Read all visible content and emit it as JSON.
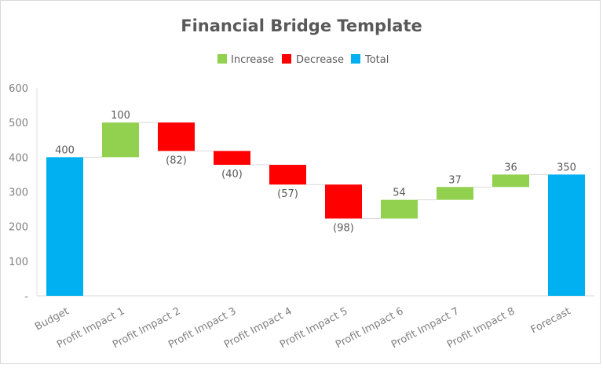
{
  "chart_data": {
    "type": "waterfall",
    "title": "Financial Bridge Template",
    "legend": {
      "position": "top",
      "entries": [
        {
          "name": "Increase",
          "color": "#92d050"
        },
        {
          "name": "Decrease",
          "color": "#ff0000"
        },
        {
          "name": "Total",
          "color": "#00b0f0"
        }
      ]
    },
    "categories": [
      "Budget",
      "Profit Impact 1",
      "Profit Impact 2",
      "Profit Impact 3",
      "Profit Impact 4",
      "Profit Impact 5",
      "Profit Impact 6",
      "Profit Impact 7",
      "Profit Impact 8",
      "Forecast"
    ],
    "values": [
      400,
      100,
      -82,
      -40,
      -57,
      -98,
      54,
      37,
      36,
      350
    ],
    "kinds": [
      "total",
      "delta",
      "delta",
      "delta",
      "delta",
      "delta",
      "delta",
      "delta",
      "delta",
      "total"
    ],
    "data_labels": [
      "400",
      "100",
      "(82)",
      "(40)",
      "(57)",
      "(98)",
      "54",
      "37",
      "36",
      "350"
    ],
    "ylim": [
      0,
      600
    ],
    "yticks": [
      0,
      100,
      200,
      300,
      400,
      500,
      600
    ],
    "ytick_labels": [
      "-",
      "100",
      "200",
      "300",
      "400",
      "500",
      "600"
    ],
    "grid": false,
    "xlabel": "",
    "ylabel": ""
  }
}
